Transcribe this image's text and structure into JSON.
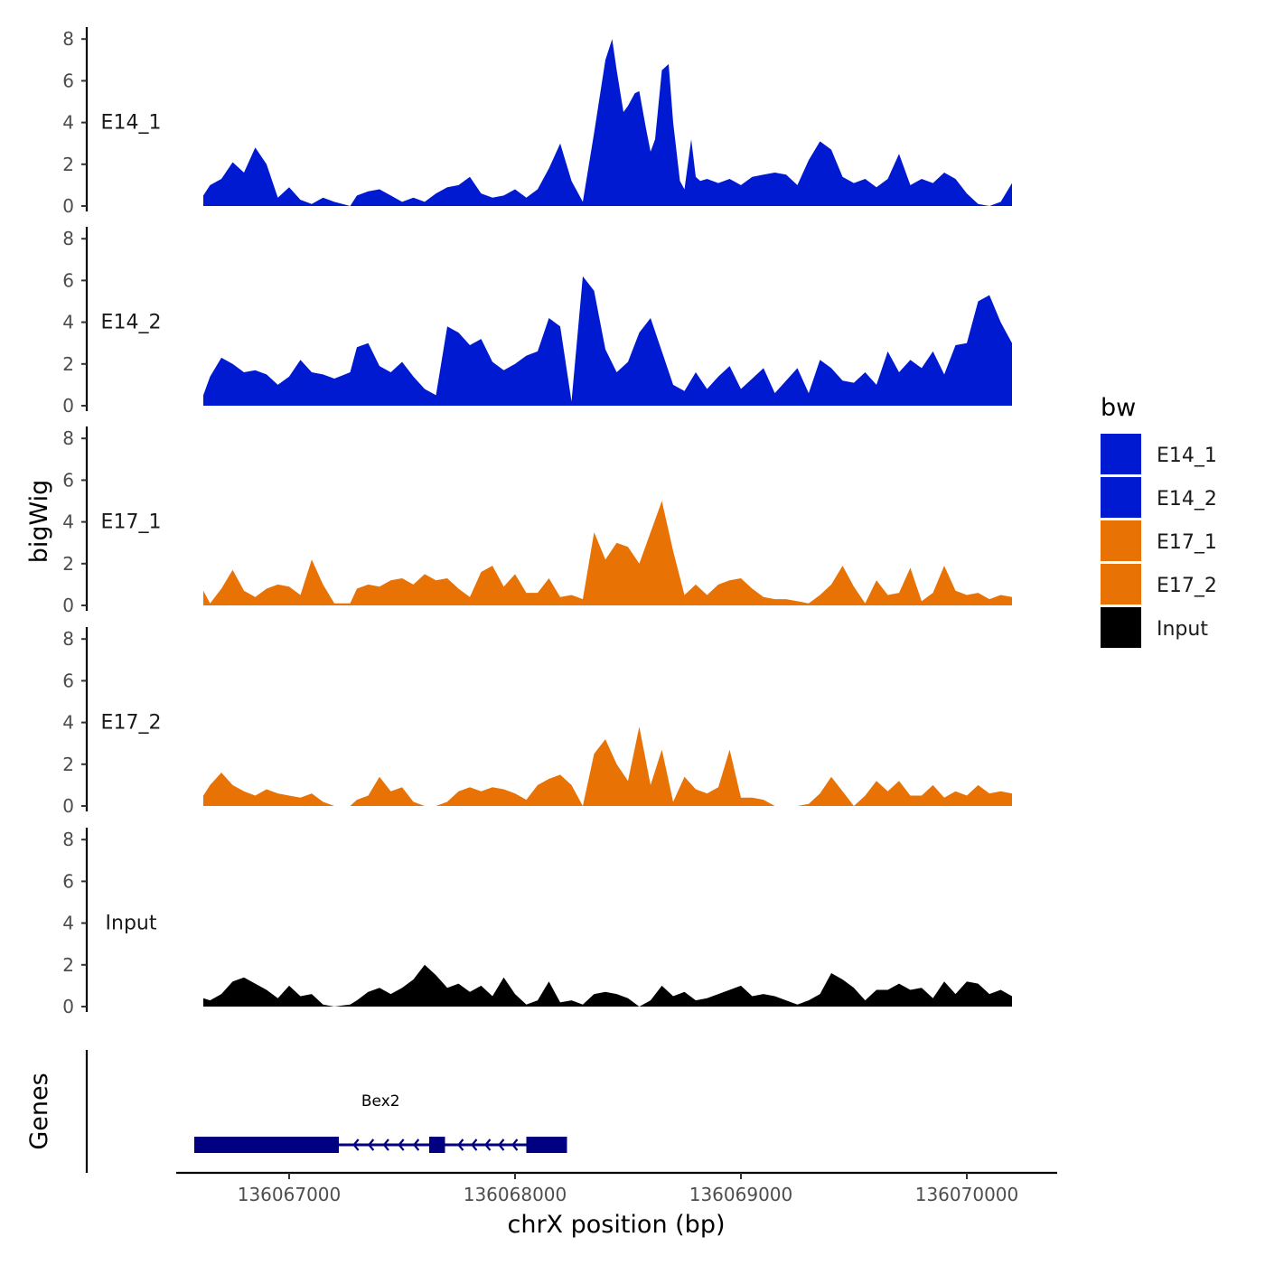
{
  "chart_data": {
    "type": "area",
    "title": "",
    "xlabel": "chrX position (bp)",
    "ylabel": "bigWig",
    "genes_label": "Genes",
    "xlim": [
      136066500,
      136070400
    ],
    "ylim": [
      0,
      8.4
    ],
    "x_ticks": [
      136067000,
      136068000,
      136069000,
      136070000
    ],
    "x_tick_labels": [
      "136067000",
      "136068000",
      "136069000",
      "136070000"
    ],
    "y_ticks": [
      0,
      2,
      4,
      6,
      8
    ],
    "y_tick_labels": [
      "0",
      "2",
      "4",
      "6",
      "8"
    ],
    "legend": {
      "title": "bw",
      "position": "right",
      "entries": [
        {
          "label": "E14_1",
          "color": "#001AD2"
        },
        {
          "label": "E14_2",
          "color": "#001AD2"
        },
        {
          "label": "E17_1",
          "color": "#E87204"
        },
        {
          "label": "E17_2",
          "color": "#E87204"
        },
        {
          "label": "Input",
          "color": "#000000"
        }
      ]
    },
    "series": [
      {
        "name": "E14_1",
        "color": "#001AD2",
        "x": [
          136066620,
          136066650,
          136066700,
          136066750,
          136066800,
          136066850,
          136066900,
          136066950,
          136067000,
          136067050,
          136067100,
          136067150,
          136067200,
          136067270,
          136067300,
          136067350,
          136067400,
          136067450,
          136067500,
          136067550,
          136067600,
          136067650,
          136067700,
          136067750,
          136067800,
          136067850,
          136067900,
          136067950,
          136068000,
          136068050,
          136068100,
          136068150,
          136068200,
          136068250,
          136068300,
          136068350,
          136068400,
          136068430,
          136068450,
          136068480,
          136068500,
          136068530,
          136068550,
          136068580,
          136068600,
          136068620,
          136068650,
          136068680,
          136068700,
          136068730,
          136068750,
          136068780,
          136068800,
          136068820,
          136068850,
          136068900,
          136068950,
          136069000,
          136069050,
          136069100,
          136069150,
          136069200,
          136069250,
          136069300,
          136069350,
          136069400,
          136069450,
          136069500,
          136069550,
          136069600,
          136069650,
          136069700,
          136069750,
          136069800,
          136069850,
          136069900,
          136069950,
          136070000,
          136070050,
          136070100,
          136070150,
          136070200
        ],
        "values": [
          0.5,
          1.0,
          1.3,
          2.1,
          1.6,
          2.8,
          2.0,
          0.4,
          0.9,
          0.3,
          0.1,
          0.4,
          0.2,
          0.0,
          0.5,
          0.7,
          0.8,
          0.5,
          0.2,
          0.4,
          0.2,
          0.6,
          0.9,
          1.0,
          1.4,
          0.6,
          0.4,
          0.5,
          0.8,
          0.4,
          0.8,
          1.8,
          3.0,
          1.2,
          0.2,
          3.5,
          7.0,
          8.0,
          6.5,
          4.5,
          4.8,
          5.4,
          5.5,
          3.7,
          2.6,
          3.2,
          6.5,
          6.8,
          4.0,
          1.2,
          0.8,
          3.2,
          1.4,
          1.2,
          1.3,
          1.1,
          1.3,
          1.0,
          1.4,
          1.5,
          1.6,
          1.5,
          1.0,
          2.2,
          3.1,
          2.7,
          1.4,
          1.1,
          1.3,
          0.9,
          1.3,
          2.5,
          1.0,
          1.3,
          1.1,
          1.6,
          1.3,
          0.6,
          0.1,
          0.0,
          0.2,
          1.1
        ]
      },
      {
        "name": "E14_2",
        "color": "#001AD2",
        "x": [
          136066620,
          136066650,
          136066700,
          136066750,
          136066800,
          136066850,
          136066900,
          136066950,
          136067000,
          136067050,
          136067100,
          136067150,
          136067200,
          136067270,
          136067300,
          136067350,
          136067400,
          136067450,
          136067500,
          136067550,
          136067600,
          136067650,
          136067700,
          136067750,
          136067800,
          136067850,
          136067900,
          136067950,
          136068000,
          136068050,
          136068100,
          136068150,
          136068200,
          136068250,
          136068300,
          136068350,
          136068400,
          136068450,
          136068500,
          136068550,
          136068600,
          136068650,
          136068700,
          136068750,
          136068800,
          136068850,
          136068900,
          136068950,
          136069000,
          136069050,
          136069100,
          136069150,
          136069200,
          136069250,
          136069300,
          136069350,
          136069400,
          136069450,
          136069500,
          136069550,
          136069600,
          136069650,
          136069700,
          136069750,
          136069800,
          136069850,
          136069900,
          136069950,
          136070000,
          136070050,
          136070100,
          136070150,
          136070200
        ],
        "values": [
          0.5,
          1.4,
          2.3,
          2.0,
          1.6,
          1.7,
          1.5,
          1.0,
          1.4,
          2.2,
          1.6,
          1.5,
          1.3,
          1.6,
          2.8,
          3.0,
          1.9,
          1.6,
          2.1,
          1.4,
          0.8,
          0.5,
          3.8,
          3.5,
          2.9,
          3.2,
          2.1,
          1.7,
          2.0,
          2.4,
          2.6,
          4.2,
          3.8,
          0.2,
          6.2,
          5.5,
          2.7,
          1.6,
          2.1,
          3.5,
          4.2,
          2.6,
          1.0,
          0.7,
          1.6,
          0.8,
          1.4,
          1.9,
          0.8,
          1.3,
          1.8,
          0.6,
          1.2,
          1.8,
          0.6,
          2.2,
          1.8,
          1.2,
          1.1,
          1.6,
          1.0,
          2.6,
          1.6,
          2.2,
          1.8,
          2.6,
          1.5,
          2.9,
          3.0,
          5.0,
          5.3,
          4.0,
          3.0
        ]
      },
      {
        "name": "E17_1",
        "color": "#E87204",
        "x": [
          136066620,
          136066650,
          136066700,
          136066750,
          136066800,
          136066850,
          136066900,
          136066950,
          136067000,
          136067050,
          136067100,
          136067150,
          136067200,
          136067270,
          136067300,
          136067350,
          136067400,
          136067450,
          136067500,
          136067550,
          136067600,
          136067650,
          136067700,
          136067750,
          136067800,
          136067850,
          136067900,
          136067950,
          136068000,
          136068050,
          136068100,
          136068150,
          136068200,
          136068250,
          136068300,
          136068350,
          136068400,
          136068450,
          136068500,
          136068550,
          136068600,
          136068650,
          136068700,
          136068750,
          136068800,
          136068850,
          136068900,
          136068950,
          136069000,
          136069050,
          136069100,
          136069150,
          136069200,
          136069250,
          136069300,
          136069350,
          136069400,
          136069450,
          136069500,
          136069550,
          136069600,
          136069650,
          136069700,
          136069750,
          136069800,
          136069850,
          136069900,
          136069950,
          136070000,
          136070050,
          136070100,
          136070150,
          136070200
        ],
        "values": [
          0.7,
          0.1,
          0.8,
          1.7,
          0.7,
          0.4,
          0.8,
          1.0,
          0.9,
          0.5,
          2.2,
          1.0,
          0.1,
          0.1,
          0.8,
          1.0,
          0.9,
          1.2,
          1.3,
          1.0,
          1.5,
          1.2,
          1.3,
          0.8,
          0.4,
          1.6,
          1.9,
          0.9,
          1.5,
          0.6,
          0.6,
          1.3,
          0.4,
          0.5,
          0.3,
          3.5,
          2.2,
          3.0,
          2.8,
          2.0,
          3.5,
          5.0,
          2.6,
          0.5,
          1.0,
          0.5,
          1.0,
          1.2,
          1.3,
          0.8,
          0.4,
          0.3,
          0.3,
          0.2,
          0.1,
          0.5,
          1.0,
          1.9,
          0.9,
          0.1,
          1.2,
          0.5,
          0.6,
          1.8,
          0.2,
          0.6,
          1.9,
          0.7,
          0.5,
          0.6,
          0.3,
          0.5,
          0.4
        ]
      },
      {
        "name": "E17_2",
        "color": "#E87204",
        "x": [
          136066620,
          136066650,
          136066700,
          136066750,
          136066800,
          136066850,
          136066900,
          136066950,
          136067000,
          136067050,
          136067100,
          136067150,
          136067200,
          136067270,
          136067300,
          136067350,
          136067400,
          136067450,
          136067500,
          136067550,
          136067600,
          136067650,
          136067700,
          136067750,
          136067800,
          136067850,
          136067900,
          136067950,
          136068000,
          136068050,
          136068100,
          136068150,
          136068200,
          136068250,
          136068300,
          136068350,
          136068400,
          136068450,
          136068500,
          136068550,
          136068600,
          136068650,
          136068700,
          136068750,
          136068800,
          136068850,
          136068900,
          136068950,
          136069000,
          136069050,
          136069100,
          136069150,
          136069200,
          136069250,
          136069300,
          136069350,
          136069400,
          136069450,
          136069500,
          136069550,
          136069600,
          136069650,
          136069700,
          136069750,
          136069800,
          136069850,
          136069900,
          136069950,
          136070000,
          136070050,
          136070100,
          136070150,
          136070200
        ],
        "values": [
          0.5,
          1.0,
          1.6,
          1.0,
          0.7,
          0.5,
          0.8,
          0.6,
          0.5,
          0.4,
          0.6,
          0.2,
          0.0,
          0.0,
          0.3,
          0.5,
          1.4,
          0.7,
          0.9,
          0.2,
          0.0,
          0.0,
          0.2,
          0.7,
          0.9,
          0.7,
          0.9,
          0.8,
          0.6,
          0.3,
          1.0,
          1.3,
          1.5,
          1.0,
          0.0,
          2.5,
          3.2,
          2.0,
          1.2,
          3.8,
          1.0,
          2.7,
          0.2,
          1.4,
          0.8,
          0.6,
          0.9,
          2.7,
          0.4,
          0.4,
          0.3,
          0.0,
          0.0,
          0.0,
          0.1,
          0.6,
          1.4,
          0.7,
          0.0,
          0.5,
          1.2,
          0.7,
          1.2,
          0.5,
          0.5,
          1.0,
          0.4,
          0.7,
          0.5,
          1.0,
          0.6,
          0.7,
          0.6
        ]
      },
      {
        "name": "Input",
        "color": "#000000",
        "x": [
          136066620,
          136066650,
          136066700,
          136066750,
          136066800,
          136066850,
          136066900,
          136066950,
          136067000,
          136067050,
          136067100,
          136067150,
          136067200,
          136067270,
          136067300,
          136067350,
          136067400,
          136067450,
          136067500,
          136067550,
          136067600,
          136067650,
          136067700,
          136067750,
          136067800,
          136067850,
          136067900,
          136067950,
          136068000,
          136068050,
          136068100,
          136068150,
          136068200,
          136068250,
          136068300,
          136068350,
          136068400,
          136068450,
          136068500,
          136068550,
          136068600,
          136068650,
          136068700,
          136068750,
          136068800,
          136068850,
          136068900,
          136068950,
          136069000,
          136069050,
          136069100,
          136069150,
          136069200,
          136069250,
          136069300,
          136069350,
          136069400,
          136069450,
          136069500,
          136069550,
          136069600,
          136069650,
          136069700,
          136069750,
          136069800,
          136069850,
          136069900,
          136069950,
          136070000,
          136070050,
          136070100,
          136070150,
          136070200
        ],
        "values": [
          0.4,
          0.3,
          0.6,
          1.2,
          1.4,
          1.1,
          0.8,
          0.4,
          1.0,
          0.5,
          0.6,
          0.1,
          0.0,
          0.1,
          0.3,
          0.7,
          0.9,
          0.6,
          0.9,
          1.3,
          2.0,
          1.5,
          0.9,
          1.1,
          0.7,
          1.0,
          0.5,
          1.4,
          0.6,
          0.1,
          0.3,
          1.2,
          0.2,
          0.3,
          0.1,
          0.6,
          0.7,
          0.6,
          0.4,
          0.0,
          0.3,
          1.0,
          0.5,
          0.7,
          0.3,
          0.4,
          0.6,
          0.8,
          1.0,
          0.5,
          0.6,
          0.5,
          0.3,
          0.1,
          0.3,
          0.6,
          1.6,
          1.3,
          0.9,
          0.3,
          0.8,
          0.8,
          1.1,
          0.8,
          0.9,
          0.4,
          1.2,
          0.6,
          1.2,
          1.1,
          0.6,
          0.8,
          0.5
        ]
      }
    ],
    "genes": [
      {
        "name": "Bex2",
        "start": 136066580,
        "end": 136068230,
        "strand": "-",
        "color": "#000080",
        "exons": [
          {
            "start": 136066580,
            "end": 136067220
          },
          {
            "start": 136067620,
            "end": 136067690
          },
          {
            "start": 136068050,
            "end": 136068230
          }
        ]
      }
    ]
  }
}
